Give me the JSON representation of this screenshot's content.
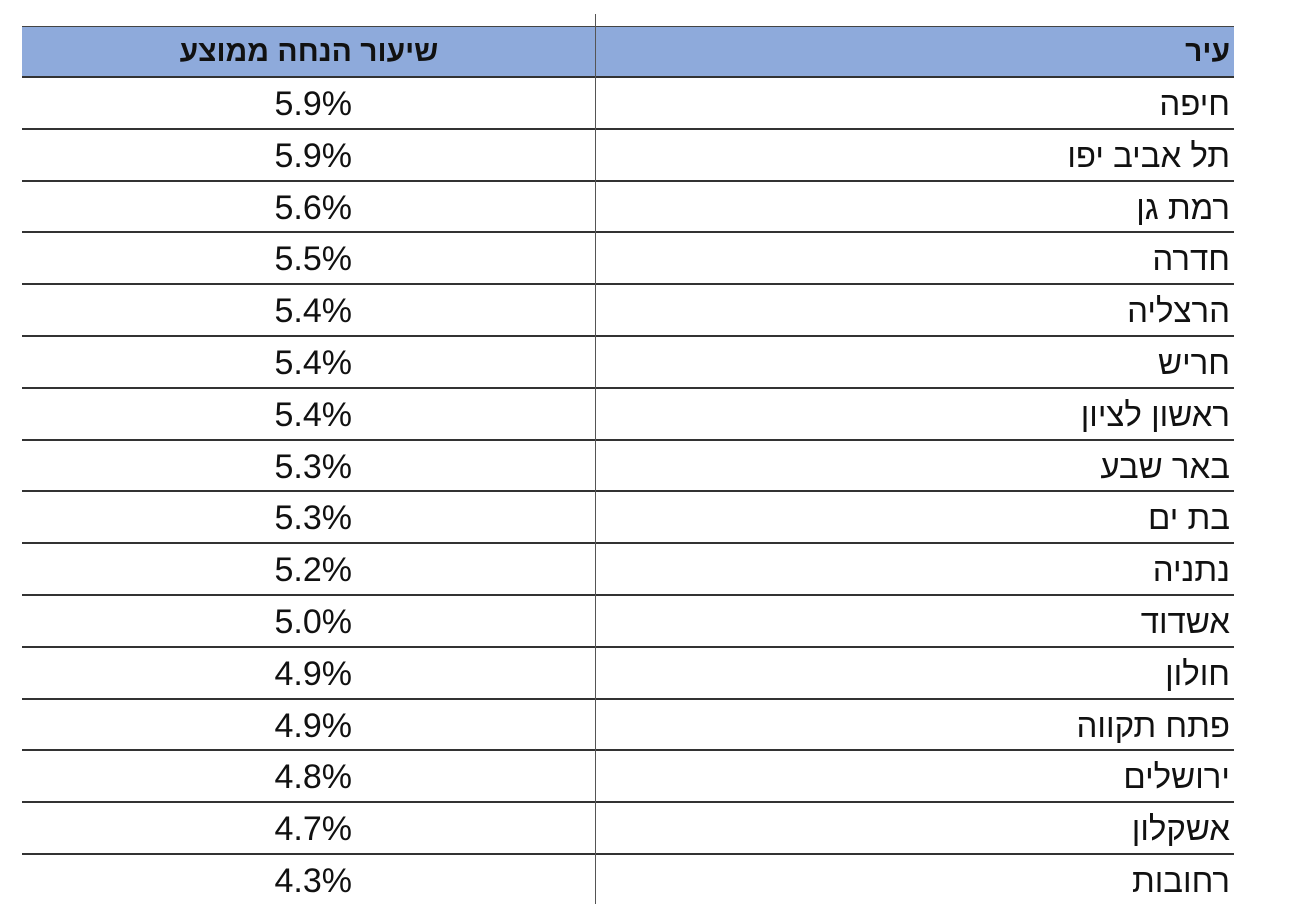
{
  "table": {
    "headers": {
      "rate": "שיעור הנחה ממוצע",
      "city": "עיר"
    },
    "rows": [
      {
        "city": "חיפה",
        "rate": "5.9%"
      },
      {
        "city": "תל אביב יפו",
        "rate": "5.9%"
      },
      {
        "city": "רמת גן",
        "rate": "5.6%"
      },
      {
        "city": "חדרה",
        "rate": "5.5%"
      },
      {
        "city": "הרצליה",
        "rate": "5.4%"
      },
      {
        "city": "חריש",
        "rate": "5.4%"
      },
      {
        "city": "ראשון לציון",
        "rate": "5.4%"
      },
      {
        "city": "באר שבע",
        "rate": "5.3%"
      },
      {
        "city": "בת ים",
        "rate": "5.3%"
      },
      {
        "city": "נתניה",
        "rate": "5.2%"
      },
      {
        "city": "אשדוד",
        "rate": "5.0%"
      },
      {
        "city": "חולון",
        "rate": "4.9%"
      },
      {
        "city": "פתח תקווה",
        "rate": "4.9%"
      },
      {
        "city": "ירושלים",
        "rate": "4.8%"
      },
      {
        "city": "אשקלון",
        "rate": "4.7%"
      },
      {
        "city": "רחובות",
        "rate": "4.3%"
      }
    ],
    "header_color": "#8eaadb"
  }
}
